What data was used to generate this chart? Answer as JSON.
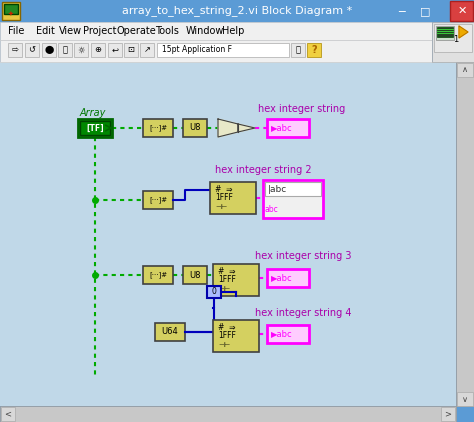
{
  "title": "array_to_hex_string_2.vi Block Diagram *",
  "titlebar_bg": "#5B9BD5",
  "titlebar_fg": "white",
  "close_btn_color": "#E05050",
  "menu_bg": "#F0F0F0",
  "toolbar_bg": "#F0F0F0",
  "diagram_bg": "#C0D8E8",
  "scrollbar_bg": "#C8C8C8",
  "scrollbar_btn": "#D8D8D8",
  "wire_green": "#00AA00",
  "wire_pink": "#FF00FF",
  "wire_blue": "#0000BB",
  "node_bg": "#D4D060",
  "node_border": "#404040",
  "array_node_bg": "#009900",
  "label_color": "#AA00AA",
  "labels": [
    "hex integer string",
    "hex integer string 2",
    "hex integer string 3",
    "hex integer string 4"
  ],
  "menu_items": [
    "File",
    "Edit",
    "View",
    "Project",
    "Operate",
    "Tools",
    "Window",
    "Help"
  ],
  "menu_x": [
    8,
    36,
    59,
    83,
    117,
    155,
    186,
    222
  ]
}
